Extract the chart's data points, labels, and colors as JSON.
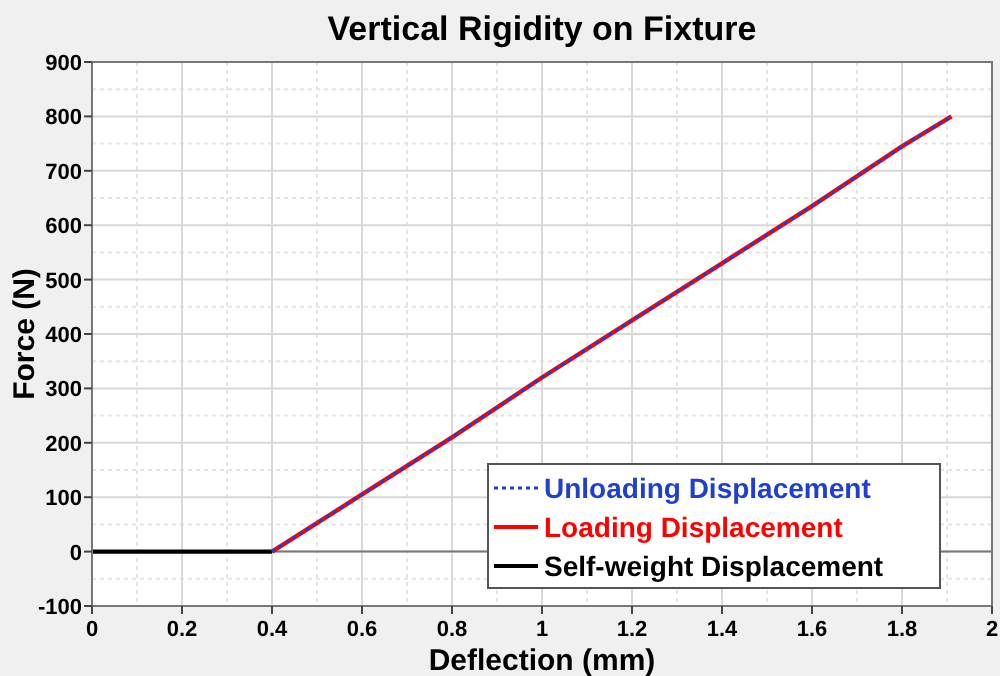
{
  "chart_data": {
    "type": "line",
    "title": "Vertical Rigidity on Fixture",
    "xlabel": "Deflection (mm)",
    "ylabel": "Force (N)",
    "xlim": [
      0,
      2
    ],
    "xticks": [
      0,
      0.2,
      0.4,
      0.6,
      0.8,
      1,
      1.2,
      1.4,
      1.6,
      1.8,
      2
    ],
    "ylim": [
      -100,
      900
    ],
    "yticks": [
      -100,
      0,
      100,
      200,
      300,
      400,
      500,
      600,
      700,
      800,
      900
    ],
    "grid": true,
    "legend": "bottom right",
    "series": [
      {
        "name": "Unloading Displacement",
        "color": "#1f3fd0",
        "line_style": "dotted",
        "x": [
          0.4,
          0.6,
          0.8,
          1,
          1.2,
          1.4,
          1.6,
          1.8,
          1.91
        ],
        "values": [
          0,
          105,
          210,
          320,
          425,
          530,
          635,
          745,
          800
        ]
      },
      {
        "name": "Loading Displacement",
        "color": "#ff0000",
        "line_style": "solid",
        "x": [
          0.4,
          0.6,
          0.8,
          1,
          1.2,
          1.4,
          1.6,
          1.8,
          1.91
        ],
        "values": [
          0,
          105,
          210,
          320,
          425,
          530,
          635,
          745,
          800
        ]
      },
      {
        "name": "Self-weight Displacement",
        "color": "#000000",
        "line_style": "solid",
        "x": [
          0,
          0.4
        ],
        "values": [
          0,
          0
        ]
      }
    ]
  }
}
